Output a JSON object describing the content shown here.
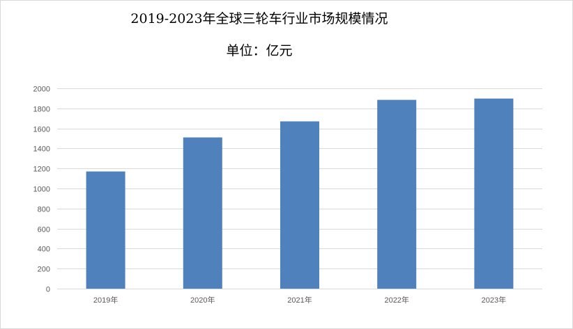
{
  "chart_data": {
    "type": "bar",
    "title": "2019-2023年全球三轮车行业市场规模情况",
    "subtitle": "单位：亿元",
    "categories": [
      "2019年",
      "2020年",
      "2021年",
      "2022年",
      "2023年"
    ],
    "values": [
      1170,
      1510,
      1670,
      1885,
      1898
    ],
    "xlabel": "",
    "ylabel": "",
    "ylim": [
      0,
      2000
    ],
    "yticks": [
      "0",
      "200",
      "400",
      "600",
      "800",
      "1000",
      "1200",
      "1400",
      "1600",
      "1800",
      "2000"
    ],
    "grid": true,
    "legend": "none",
    "bar_color": "#4f81bd",
    "grid_color": "#d9d9d9"
  }
}
